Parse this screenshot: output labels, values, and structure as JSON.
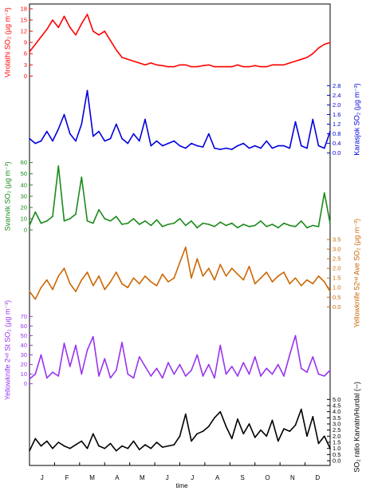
{
  "chart_data": {
    "type": "line",
    "xlabel": "time",
    "month_labels": [
      "J",
      "F",
      "M",
      "A",
      "M",
      "J",
      "J",
      "A",
      "S",
      "O",
      "N",
      "D"
    ],
    "series": [
      {
        "name": "Virolathi SO2",
        "ylabel": "Virolathi SO₂ (µg m⁻³)",
        "axis_side": "left",
        "color": "#ff0000",
        "ylim": [
          0,
          18
        ],
        "ticks": [
          0,
          3,
          6,
          9,
          12,
          15,
          18
        ],
        "x": [
          0,
          7,
          14,
          21,
          28,
          35,
          42,
          49,
          56,
          63,
          70,
          77,
          84,
          91,
          98,
          105,
          112,
          119,
          126,
          133,
          140,
          147,
          154,
          161,
          168,
          175,
          182,
          189,
          196,
          203,
          210,
          217,
          224,
          231,
          238,
          245,
          252,
          259,
          266,
          273,
          280,
          287,
          294,
          301,
          308,
          315,
          322,
          329,
          336,
          343,
          350,
          357,
          364
        ],
        "values": [
          6.5,
          8.5,
          10.5,
          12.5,
          15,
          13,
          16,
          13,
          11,
          14,
          16.5,
          12,
          11,
          12,
          9.5,
          7,
          5,
          4.5,
          4,
          3.5,
          3,
          3.5,
          3,
          2.8,
          2.5,
          2.5,
          3,
          3,
          2.5,
          2.5,
          2.8,
          3,
          2.5,
          2.5,
          2.5,
          2.5,
          3,
          2.5,
          2.5,
          2.8,
          2.5,
          2.5,
          3,
          3,
          3,
          3.5,
          4,
          4.5,
          5,
          6,
          7.5,
          8.5,
          9
        ]
      },
      {
        "name": "Karasjok SO2",
        "ylabel": "Karasjok SO₂ (µg m⁻³)",
        "axis_side": "right",
        "color": "#0000dd",
        "ylim": [
          0,
          2.8
        ],
        "ticks": [
          0.0,
          0.4,
          0.8,
          1.2,
          1.6,
          2.0,
          2.4,
          2.8
        ],
        "x": [
          0,
          7,
          14,
          21,
          28,
          35,
          42,
          49,
          56,
          63,
          70,
          77,
          84,
          91,
          98,
          105,
          112,
          119,
          126,
          133,
          140,
          147,
          154,
          161,
          168,
          175,
          182,
          189,
          196,
          203,
          210,
          217,
          224,
          231,
          238,
          245,
          252,
          259,
          266,
          273,
          280,
          287,
          294,
          301,
          308,
          315,
          322,
          329,
          336,
          343,
          350,
          357,
          364
        ],
        "values": [
          0.6,
          0.4,
          0.5,
          0.9,
          0.5,
          1.0,
          1.6,
          0.8,
          0.5,
          1.2,
          2.6,
          0.7,
          0.9,
          0.5,
          0.6,
          1.2,
          0.6,
          0.4,
          0.8,
          0.5,
          1.4,
          0.3,
          0.5,
          0.3,
          0.4,
          0.5,
          0.3,
          0.2,
          0.4,
          0.3,
          0.25,
          0.8,
          0.2,
          0.15,
          0.2,
          0.15,
          0.3,
          0.4,
          0.2,
          0.3,
          0.2,
          0.5,
          0.2,
          0.3,
          0.3,
          0.2,
          1.3,
          0.3,
          0.2,
          1.4,
          0.3,
          0.2,
          0.9
        ]
      },
      {
        "name": "Svanvik SO2",
        "ylabel": "Svanvik SO₂ (µg m⁻³)",
        "axis_side": "left",
        "color": "#1a8a1a",
        "ylim": [
          0,
          60
        ],
        "ticks": [
          0,
          10,
          20,
          30,
          40,
          50,
          60
        ],
        "x": [
          0,
          7,
          14,
          21,
          28,
          35,
          42,
          49,
          56,
          63,
          70,
          77,
          84,
          91,
          98,
          105,
          112,
          119,
          126,
          133,
          140,
          147,
          154,
          161,
          168,
          175,
          182,
          189,
          196,
          203,
          210,
          217,
          224,
          231,
          238,
          245,
          252,
          259,
          266,
          273,
          280,
          287,
          294,
          301,
          308,
          315,
          322,
          329,
          336,
          343,
          350,
          357,
          364
        ],
        "values": [
          4,
          16,
          6,
          8,
          12,
          57,
          8,
          10,
          14,
          47,
          8,
          6,
          18,
          10,
          8,
          12,
          5,
          6,
          10,
          5,
          8,
          4,
          9,
          3,
          5,
          6,
          10,
          4,
          8,
          2,
          6,
          5,
          3,
          7,
          4,
          6,
          2,
          5,
          3,
          4,
          8,
          3,
          5,
          2,
          6,
          4,
          3,
          8,
          2,
          4,
          3,
          33,
          6
        ]
      },
      {
        "name": "Yellowknife 52nd Ave SO2",
        "ylabel": "Yellowknife 52ⁿᵈ Ave SO₂ (µg m⁻³)",
        "axis_side": "right",
        "color": "#cc6600",
        "ylim": [
          0,
          3.5
        ],
        "ticks": [
          0.0,
          0.5,
          1.0,
          1.5,
          2.0,
          2.5,
          3.0,
          3.5
        ],
        "x": [
          0,
          7,
          14,
          21,
          28,
          35,
          42,
          49,
          56,
          63,
          70,
          77,
          84,
          91,
          98,
          105,
          112,
          119,
          126,
          133,
          140,
          147,
          154,
          161,
          168,
          175,
          182,
          189,
          196,
          203,
          210,
          217,
          224,
          231,
          238,
          245,
          252,
          259,
          266,
          273,
          280,
          287,
          294,
          301,
          308,
          315,
          322,
          329,
          336,
          343,
          350,
          357,
          364
        ],
        "values": [
          0.8,
          0.4,
          1.0,
          1.4,
          0.9,
          1.6,
          2.0,
          1.2,
          0.8,
          1.4,
          1.8,
          1.1,
          1.6,
          0.9,
          1.3,
          1.8,
          1.2,
          1.0,
          1.5,
          1.2,
          1.6,
          1.3,
          1.1,
          1.7,
          1.3,
          1.5,
          2.3,
          3.1,
          1.5,
          2.5,
          1.6,
          2.0,
          1.4,
          2.2,
          1.6,
          2.0,
          1.7,
          1.4,
          2.1,
          1.2,
          1.5,
          1.8,
          1.3,
          1.6,
          1.8,
          1.2,
          1.5,
          1.1,
          1.4,
          1.2,
          1.6,
          1.3,
          0.8
        ]
      },
      {
        "name": "Yellowknife 2nd St SO2",
        "ylabel": "Yellowknife 2ⁿᵈ St SO₂ (µg m⁻³)",
        "axis_side": "left",
        "color": "#9933ee",
        "ylim": [
          0,
          70
        ],
        "ticks": [
          0,
          10,
          20,
          30,
          40,
          50,
          60,
          70
        ],
        "x": [
          0,
          7,
          14,
          21,
          28,
          35,
          42,
          49,
          56,
          63,
          70,
          77,
          84,
          91,
          98,
          105,
          112,
          119,
          126,
          133,
          140,
          147,
          154,
          161,
          168,
          175,
          182,
          189,
          196,
          203,
          210,
          217,
          224,
          231,
          238,
          245,
          252,
          259,
          266,
          273,
          280,
          287,
          294,
          301,
          308,
          315,
          322,
          329,
          336,
          343,
          350,
          357,
          364
        ],
        "values": [
          5,
          10,
          30,
          6,
          12,
          8,
          42,
          18,
          40,
          10,
          35,
          49,
          8,
          26,
          6,
          14,
          43,
          10,
          6,
          28,
          18,
          8,
          16,
          6,
          22,
          10,
          20,
          8,
          14,
          30,
          8,
          20,
          6,
          40,
          10,
          18,
          8,
          22,
          10,
          28,
          8,
          16,
          10,
          20,
          8,
          30,
          50,
          16,
          12,
          28,
          10,
          8,
          14
        ]
      },
      {
        "name": "SO2 ratio Karvatn/Hurdal",
        "ylabel": "SO₂ ratio Karvatn/Hurdal (--)",
        "axis_side": "right",
        "color": "#000000",
        "ylim": [
          0,
          5.5
        ],
        "ticks": [
          0.0,
          0.5,
          1.0,
          1.5,
          2.0,
          2.5,
          3.0,
          3.5,
          4.0,
          4.5,
          5.0
        ],
        "x": [
          0,
          7,
          14,
          21,
          28,
          35,
          42,
          49,
          56,
          63,
          70,
          77,
          84,
          91,
          98,
          105,
          112,
          119,
          126,
          133,
          140,
          147,
          154,
          161,
          168,
          175,
          182,
          189,
          196,
          203,
          210,
          217,
          224,
          231,
          238,
          245,
          252,
          259,
          266,
          273,
          280,
          287,
          294,
          301,
          308,
          315,
          322,
          329,
          336,
          343,
          350,
          357,
          364
        ],
        "values": [
          0.8,
          1.8,
          1.2,
          1.6,
          1.0,
          1.5,
          1.2,
          1.0,
          1.3,
          1.6,
          1.0,
          2.2,
          1.2,
          1.0,
          1.4,
          0.8,
          1.2,
          1.0,
          1.6,
          0.9,
          1.3,
          1.0,
          1.5,
          1.1,
          1.2,
          1.3,
          2.0,
          3.8,
          1.6,
          2.2,
          2.4,
          2.8,
          3.5,
          4.0,
          2.8,
          1.8,
          3.4,
          2.2,
          3.0,
          1.9,
          2.5,
          2.0,
          3.3,
          1.6,
          2.6,
          2.4,
          2.9,
          4.2,
          2.0,
          3.6,
          1.4,
          2.0,
          1.0
        ]
      }
    ]
  }
}
